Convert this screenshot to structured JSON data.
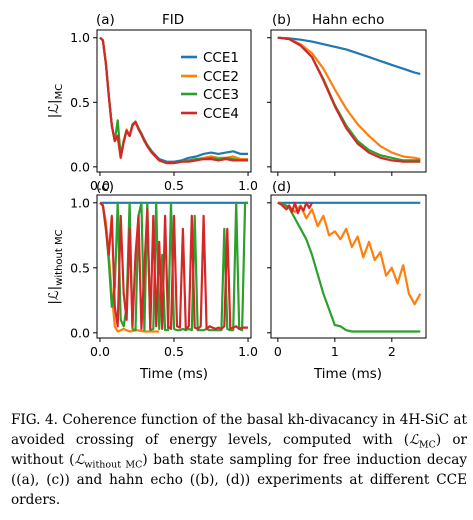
{
  "figure": {
    "panels": [
      {
        "id": "a",
        "label": "(a)",
        "title": "FID"
      },
      {
        "id": "b",
        "label": "(b)",
        "title": "Hahn echo"
      },
      {
        "id": "c",
        "label": "(c)",
        "title": ""
      },
      {
        "id": "d",
        "label": "(d)",
        "title": ""
      }
    ],
    "ylabel_top_main": "|ℒ|",
    "ylabel_top_sub": "MC",
    "ylabel_bottom_main": "|ℒ|",
    "ylabel_bottom_sub": "without MC",
    "xlabel_left": "Time (ms)",
    "xlabel_right": "Time (ms)"
  },
  "chart_data": [
    {
      "type": "line",
      "panel": "(a)",
      "title": "FID",
      "xlim": [
        -0.02,
        1.02
      ],
      "ylim": [
        -0.04,
        1.06
      ],
      "x_ticks": [
        "0.0",
        "0.5",
        "1.0"
      ],
      "y_ticks": [
        "0.0",
        "0.5",
        "1.0"
      ],
      "ylabel": "|ℒ|MC",
      "legend_position": "top-right",
      "series": [
        {
          "name": "CCE1",
          "color": "#1f77b4",
          "x": [
            0,
            0.02,
            0.04,
            0.06,
            0.08,
            0.1,
            0.12,
            0.14,
            0.16,
            0.18,
            0.2,
            0.22,
            0.24,
            0.26,
            0.28,
            0.3,
            0.32,
            0.35,
            0.4,
            0.45,
            0.5,
            0.55,
            0.6,
            0.65,
            0.7,
            0.75,
            0.8,
            0.85,
            0.9,
            0.95,
            1.0
          ],
          "y": [
            1.0,
            0.98,
            0.8,
            0.55,
            0.32,
            0.2,
            0.24,
            0.08,
            0.2,
            0.28,
            0.24,
            0.32,
            0.35,
            0.3,
            0.26,
            0.21,
            0.17,
            0.12,
            0.06,
            0.04,
            0.04,
            0.05,
            0.07,
            0.08,
            0.1,
            0.11,
            0.1,
            0.11,
            0.12,
            0.1,
            0.1
          ]
        },
        {
          "name": "CCE2",
          "color": "#ff7f0e",
          "x": [
            0,
            0.02,
            0.04,
            0.06,
            0.08,
            0.1,
            0.12,
            0.14,
            0.16,
            0.18,
            0.2,
            0.22,
            0.24,
            0.26,
            0.28,
            0.3,
            0.32,
            0.35,
            0.4,
            0.45,
            0.5,
            0.55,
            0.6,
            0.65,
            0.7,
            0.75,
            0.8,
            0.85,
            0.9,
            0.95,
            1.0
          ],
          "y": [
            1.0,
            0.98,
            0.8,
            0.55,
            0.32,
            0.2,
            0.23,
            0.07,
            0.2,
            0.29,
            0.24,
            0.32,
            0.34,
            0.3,
            0.25,
            0.2,
            0.16,
            0.11,
            0.05,
            0.03,
            0.03,
            0.04,
            0.05,
            0.06,
            0.07,
            0.08,
            0.07,
            0.07,
            0.08,
            0.06,
            0.06
          ]
        },
        {
          "name": "CCE3",
          "color": "#2ca02c",
          "x": [
            0,
            0.02,
            0.04,
            0.06,
            0.08,
            0.1,
            0.12,
            0.14,
            0.16,
            0.18,
            0.2,
            0.22,
            0.24,
            0.26,
            0.28,
            0.3,
            0.32,
            0.35,
            0.4,
            0.45,
            0.5,
            0.55,
            0.6,
            0.65,
            0.7,
            0.75,
            0.8,
            0.85,
            0.9,
            0.95,
            1.0
          ],
          "y": [
            1.0,
            0.98,
            0.8,
            0.55,
            0.32,
            0.2,
            0.36,
            0.08,
            0.2,
            0.28,
            0.24,
            0.33,
            0.35,
            0.3,
            0.26,
            0.2,
            0.17,
            0.11,
            0.05,
            0.03,
            0.03,
            0.04,
            0.05,
            0.06,
            0.06,
            0.07,
            0.06,
            0.07,
            0.06,
            0.05,
            0.05
          ]
        },
        {
          "name": "CCE4",
          "color": "#d62728",
          "x": [
            0,
            0.02,
            0.04,
            0.06,
            0.08,
            0.1,
            0.12,
            0.14,
            0.16,
            0.18,
            0.2,
            0.22,
            0.24,
            0.26,
            0.28,
            0.3,
            0.32,
            0.35,
            0.4,
            0.45,
            0.5,
            0.55,
            0.6,
            0.65,
            0.7,
            0.75,
            0.8,
            0.85,
            0.9,
            0.95,
            1.0
          ],
          "y": [
            1.0,
            0.98,
            0.8,
            0.55,
            0.32,
            0.2,
            0.24,
            0.07,
            0.19,
            0.28,
            0.24,
            0.32,
            0.35,
            0.29,
            0.25,
            0.2,
            0.16,
            0.11,
            0.05,
            0.03,
            0.03,
            0.04,
            0.04,
            0.05,
            0.06,
            0.06,
            0.05,
            0.06,
            0.05,
            0.05,
            0.05
          ]
        }
      ]
    },
    {
      "type": "line",
      "panel": "(b)",
      "title": "Hahn echo",
      "xlim": [
        -0.12,
        2.6
      ],
      "ylim": [
        -0.04,
        1.06
      ],
      "x_ticks": [],
      "y_ticks": [],
      "series": [
        {
          "name": "CCE1",
          "color": "#1f77b4",
          "x": [
            0,
            0.2,
            0.4,
            0.6,
            0.8,
            1.0,
            1.2,
            1.4,
            1.6,
            1.8,
            2.0,
            2.2,
            2.4,
            2.5
          ],
          "y": [
            1.0,
            0.995,
            0.985,
            0.97,
            0.95,
            0.93,
            0.91,
            0.88,
            0.85,
            0.82,
            0.79,
            0.76,
            0.73,
            0.72
          ]
        },
        {
          "name": "CCE2",
          "color": "#ff7f0e",
          "x": [
            0,
            0.2,
            0.4,
            0.6,
            0.8,
            1.0,
            1.2,
            1.4,
            1.6,
            1.8,
            2.0,
            2.2,
            2.4,
            2.5
          ],
          "y": [
            1.0,
            0.99,
            0.95,
            0.88,
            0.76,
            0.6,
            0.45,
            0.33,
            0.24,
            0.16,
            0.11,
            0.08,
            0.07,
            0.06
          ]
        },
        {
          "name": "CCE3",
          "color": "#2ca02c",
          "x": [
            0,
            0.2,
            0.4,
            0.6,
            0.8,
            1.0,
            1.2,
            1.4,
            1.6,
            1.8,
            2.0,
            2.2,
            2.4,
            2.5
          ],
          "y": [
            1.0,
            0.99,
            0.94,
            0.85,
            0.68,
            0.48,
            0.32,
            0.2,
            0.13,
            0.09,
            0.07,
            0.05,
            0.05,
            0.05
          ]
        },
        {
          "name": "CCE4",
          "color": "#d62728",
          "x": [
            0,
            0.2,
            0.4,
            0.6,
            0.8,
            1.0,
            1.2,
            1.4,
            1.6,
            1.8,
            2.0,
            2.2,
            2.4,
            2.5
          ],
          "y": [
            1.0,
            0.99,
            0.94,
            0.85,
            0.67,
            0.47,
            0.3,
            0.18,
            0.11,
            0.07,
            0.05,
            0.04,
            0.04,
            0.04
          ]
        }
      ]
    },
    {
      "type": "line",
      "panel": "(c)",
      "title": "",
      "xlim": [
        -0.02,
        1.02
      ],
      "ylim": [
        -0.04,
        1.06
      ],
      "x_ticks": [
        "0.0",
        "0.5",
        "1.0"
      ],
      "y_ticks": [
        "0.0",
        "0.5",
        "1.0"
      ],
      "ylabel": "|ℒ|without MC",
      "xlabel": "Time (ms)",
      "series": [
        {
          "name": "CCE1",
          "color": "#1f77b4",
          "x": [
            0,
            1.0
          ],
          "y": [
            1.0,
            1.0
          ]
        },
        {
          "name": "CCE2",
          "color": "#ff7f0e",
          "x": [
            0,
            0.02,
            0.04,
            0.06,
            0.08,
            0.1,
            0.12,
            0.14,
            0.16,
            0.18,
            0.2,
            0.25,
            0.3,
            0.35,
            0.4
          ],
          "y": [
            1.0,
            0.98,
            0.85,
            0.6,
            0.3,
            0.05,
            0.01,
            0.02,
            0.03,
            0.02,
            0.01,
            0.02,
            0.01,
            0.01,
            0.01
          ]
        },
        {
          "name": "CCE3",
          "color": "#2ca02c",
          "x": [
            0,
            0.02,
            0.04,
            0.06,
            0.08,
            0.1,
            0.12,
            0.14,
            0.16,
            0.18,
            0.2,
            0.22,
            0.24,
            0.26,
            0.28,
            0.3,
            0.32,
            0.34,
            0.36,
            0.38,
            0.4,
            0.42,
            0.44,
            0.46,
            0.48,
            0.5,
            0.52,
            0.54,
            0.56,
            0.58,
            0.6,
            0.62,
            0.64,
            0.66,
            0.68,
            0.7,
            0.72,
            0.74,
            0.76,
            0.78,
            0.8,
            0.82,
            0.84,
            0.86,
            0.88,
            0.9,
            0.92,
            0.94,
            0.96,
            0.98,
            1.0
          ],
          "y": [
            1.0,
            0.98,
            0.8,
            0.55,
            0.2,
            0.35,
            1.0,
            0.1,
            0.05,
            0.2,
            1.0,
            0.03,
            0.02,
            0.9,
            1.0,
            0.02,
            1.0,
            0.02,
            0.03,
            1.0,
            0.03,
            0.6,
            0.02,
            0.02,
            1.0,
            0.03,
            0.02,
            0.02,
            0.03,
            0.02,
            0.03,
            0.02,
            0.9,
            0.02,
            0.02,
            0.02,
            0.03,
            0.02,
            0.02,
            0.02,
            0.02,
            0.02,
            0.8,
            0.03,
            0.02,
            0.02,
            1.0,
            0.03,
            0.02,
            1.0,
            1.0
          ]
        },
        {
          "name": "CCE4",
          "color": "#d62728",
          "x": [
            0,
            0.02,
            0.04,
            0.06,
            0.08,
            0.1,
            0.12,
            0.14,
            0.16,
            0.18,
            0.2,
            0.22,
            0.24,
            0.26,
            0.28,
            0.3,
            0.32,
            0.34,
            0.36,
            0.38,
            0.4,
            0.42,
            0.44,
            0.46,
            0.48,
            0.5,
            0.52,
            0.54,
            0.56,
            0.58,
            0.6,
            0.62,
            0.64,
            0.66,
            0.68,
            0.7,
            0.72,
            0.74,
            0.76,
            0.78,
            0.8,
            0.82,
            0.84,
            0.86,
            0.88,
            0.9,
            0.92,
            0.94,
            0.96,
            0.98,
            1.0
          ],
          "y": [
            1.0,
            0.98,
            0.8,
            0.6,
            0.9,
            0.2,
            0.05,
            0.9,
            0.3,
            0.1,
            0.8,
            0.05,
            0.6,
            0.9,
            0.03,
            0.5,
            0.95,
            0.03,
            0.9,
            0.05,
            0.7,
            0.03,
            0.9,
            0.05,
            0.03,
            0.9,
            0.05,
            0.04,
            0.8,
            0.03,
            0.05,
            0.9,
            0.04,
            0.03,
            0.05,
            0.9,
            0.03,
            0.05,
            0.04,
            0.03,
            0.04,
            0.03,
            0.05,
            0.8,
            0.03,
            0.04,
            0.05,
            0.03,
            0.04,
            0.04,
            0.04
          ]
        }
      ]
    },
    {
      "type": "line",
      "panel": "(d)",
      "title": "",
      "xlim": [
        -0.12,
        2.6
      ],
      "ylim": [
        -0.04,
        1.06
      ],
      "x_ticks": [
        "0",
        "1",
        "2"
      ],
      "y_ticks": [],
      "xlabel": "Time (ms)",
      "series": [
        {
          "name": "CCE1",
          "color": "#1f77b4",
          "x": [
            0,
            2.5
          ],
          "y": [
            1.0,
            1.0
          ]
        },
        {
          "name": "CCE2",
          "color": "#ff7f0e",
          "x": [
            0,
            0.1,
            0.2,
            0.3,
            0.4,
            0.5,
            0.6,
            0.7,
            0.8,
            0.9,
            1.0,
            1.1,
            1.2,
            1.3,
            1.4,
            1.5,
            1.6,
            1.7,
            1.8,
            1.9,
            2.0,
            2.1,
            2.2,
            2.3,
            2.4,
            2.5
          ],
          "y": [
            1.0,
            0.99,
            0.97,
            0.93,
            0.98,
            0.88,
            0.95,
            0.82,
            0.9,
            0.75,
            0.78,
            0.72,
            0.8,
            0.66,
            0.74,
            0.58,
            0.7,
            0.56,
            0.62,
            0.44,
            0.5,
            0.38,
            0.52,
            0.3,
            0.22,
            0.3
          ]
        },
        {
          "name": "CCE3",
          "color": "#2ca02c",
          "x": [
            0,
            0.1,
            0.2,
            0.3,
            0.4,
            0.5,
            0.6,
            0.7,
            0.8,
            0.9,
            1.0,
            1.1,
            1.2,
            1.3,
            1.4,
            1.6,
            1.8,
            2.0,
            2.2,
            2.5
          ],
          "y": [
            1.0,
            0.99,
            0.96,
            0.88,
            0.8,
            0.72,
            0.6,
            0.45,
            0.3,
            0.18,
            0.06,
            0.05,
            0.02,
            0.01,
            0.01,
            0.01,
            0.01,
            0.01,
            0.01,
            0.01
          ]
        },
        {
          "name": "CCE4",
          "color": "#d62728",
          "x": [
            0,
            0.05,
            0.1,
            0.15,
            0.2,
            0.25,
            0.3,
            0.35,
            0.4,
            0.45,
            0.5,
            0.55,
            0.6
          ],
          "y": [
            1.0,
            0.99,
            0.97,
            0.95,
            0.98,
            0.93,
            1.0,
            0.92,
            0.97,
            0.94,
            1.0,
            0.96,
            1.0
          ]
        }
      ]
    }
  ],
  "caption": {
    "fig_label": "FIG. 4.",
    "text_1": "Coherence function of the basal kh-divacancy in 4H-SiC at avoided crossing of energy levels, computed with (",
    "sym_1_main": "ℒ",
    "sym_1_sub": "MC",
    "text_2": ") or without (",
    "sym_2_main": "ℒ",
    "sym_2_sub": "without MC",
    "text_3": ") bath state sampling for free induction decay ((a), (c)) and hahn echo ((b), (d)) experiments at different CCE orders."
  }
}
